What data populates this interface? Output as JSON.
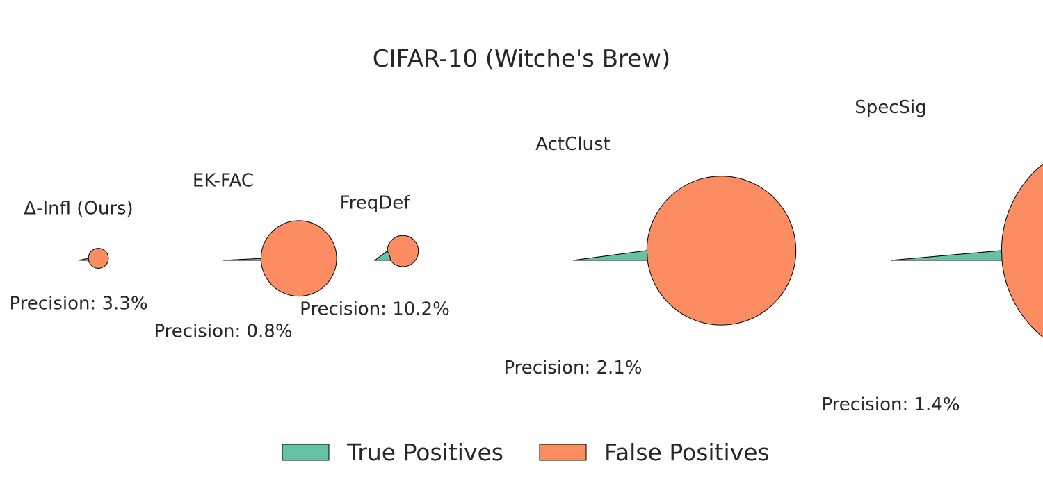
{
  "chart_data": {
    "type": "pie",
    "title": "CIFAR-10 (Witche's Brew)",
    "legend": {
      "placement": "bottom-center",
      "entries": [
        {
          "label": "True Positives",
          "color": "#66c2a5"
        },
        {
          "label": "False Positives",
          "color": "#fc8d62"
        }
      ]
    },
    "colors": {
      "true_positive": "#66c2a5",
      "false_positive": "#fc8d62",
      "edge": "#000000"
    },
    "pies": [
      {
        "name": "Δ-Infl (Ours)",
        "precision": 3.3,
        "precision_label": "Precision: 3.3%",
        "relative_size": 0.09
      },
      {
        "name": "EK-FAC",
        "precision": 0.8,
        "precision_label": "Precision: 0.8%",
        "relative_size": 0.34
      },
      {
        "name": "FreqDef",
        "precision": 10.2,
        "precision_label": "Precision: 10.2%",
        "relative_size": 0.14
      },
      {
        "name": "ActClust",
        "precision": 2.1,
        "precision_label": "Precision: 2.1%",
        "relative_size": 0.67
      },
      {
        "name": "SpecSig",
        "precision": 1.4,
        "precision_label": "Precision: 1.4%",
        "relative_size": 1.0
      }
    ]
  }
}
